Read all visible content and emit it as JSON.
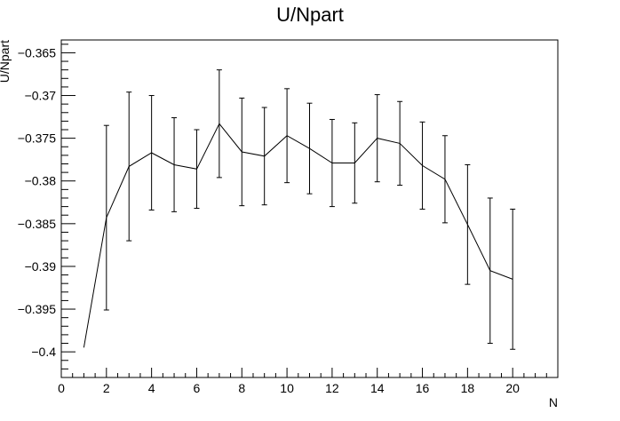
{
  "chart_data": {
    "type": "line",
    "title": "U/Npart",
    "xlabel": "N",
    "ylabel": "U/Npart",
    "xlim": [
      0,
      22
    ],
    "ylim": [
      -0.403,
      -0.3635
    ],
    "x_ticks": [
      0,
      2,
      4,
      6,
      8,
      10,
      12,
      14,
      16,
      18,
      20
    ],
    "x_tick_labels": [
      "0",
      "2",
      "4",
      "6",
      "8",
      "10",
      "12",
      "14",
      "16",
      "18",
      "20"
    ],
    "y_ticks": [
      -0.4,
      -0.395,
      -0.39,
      -0.385,
      -0.38,
      -0.375,
      -0.37,
      -0.365
    ],
    "y_tick_labels": [
      "−0.4",
      "−0.395",
      "−0.39",
      "−0.385",
      "−0.38",
      "−0.375",
      "−0.37",
      "−0.365"
    ],
    "grid": false,
    "legend": "none",
    "series": [
      {
        "color": "#000000",
        "x": [
          1,
          2,
          3,
          4,
          5,
          6,
          7,
          8,
          9,
          10,
          11,
          12,
          13,
          14,
          15,
          16,
          17,
          18,
          19,
          20
        ],
        "y": [
          -0.3995,
          -0.3843,
          -0.3783,
          -0.3767,
          -0.3781,
          -0.3786,
          -0.3733,
          -0.3766,
          -0.3771,
          -0.3747,
          -0.3762,
          -0.3779,
          -0.3779,
          -0.375,
          -0.3756,
          -0.3782,
          -0.3798,
          -0.3851,
          -0.3905,
          -0.3915
        ],
        "err": [
          0,
          0.0108,
          0.0087,
          0.0067,
          0.0055,
          0.0046,
          0.0063,
          0.0063,
          0.0057,
          0.0055,
          0.0053,
          0.0051,
          0.0047,
          0.0051,
          0.0049,
          0.0051,
          0.0051,
          0.007,
          0.0085,
          0.0082
        ]
      }
    ]
  }
}
